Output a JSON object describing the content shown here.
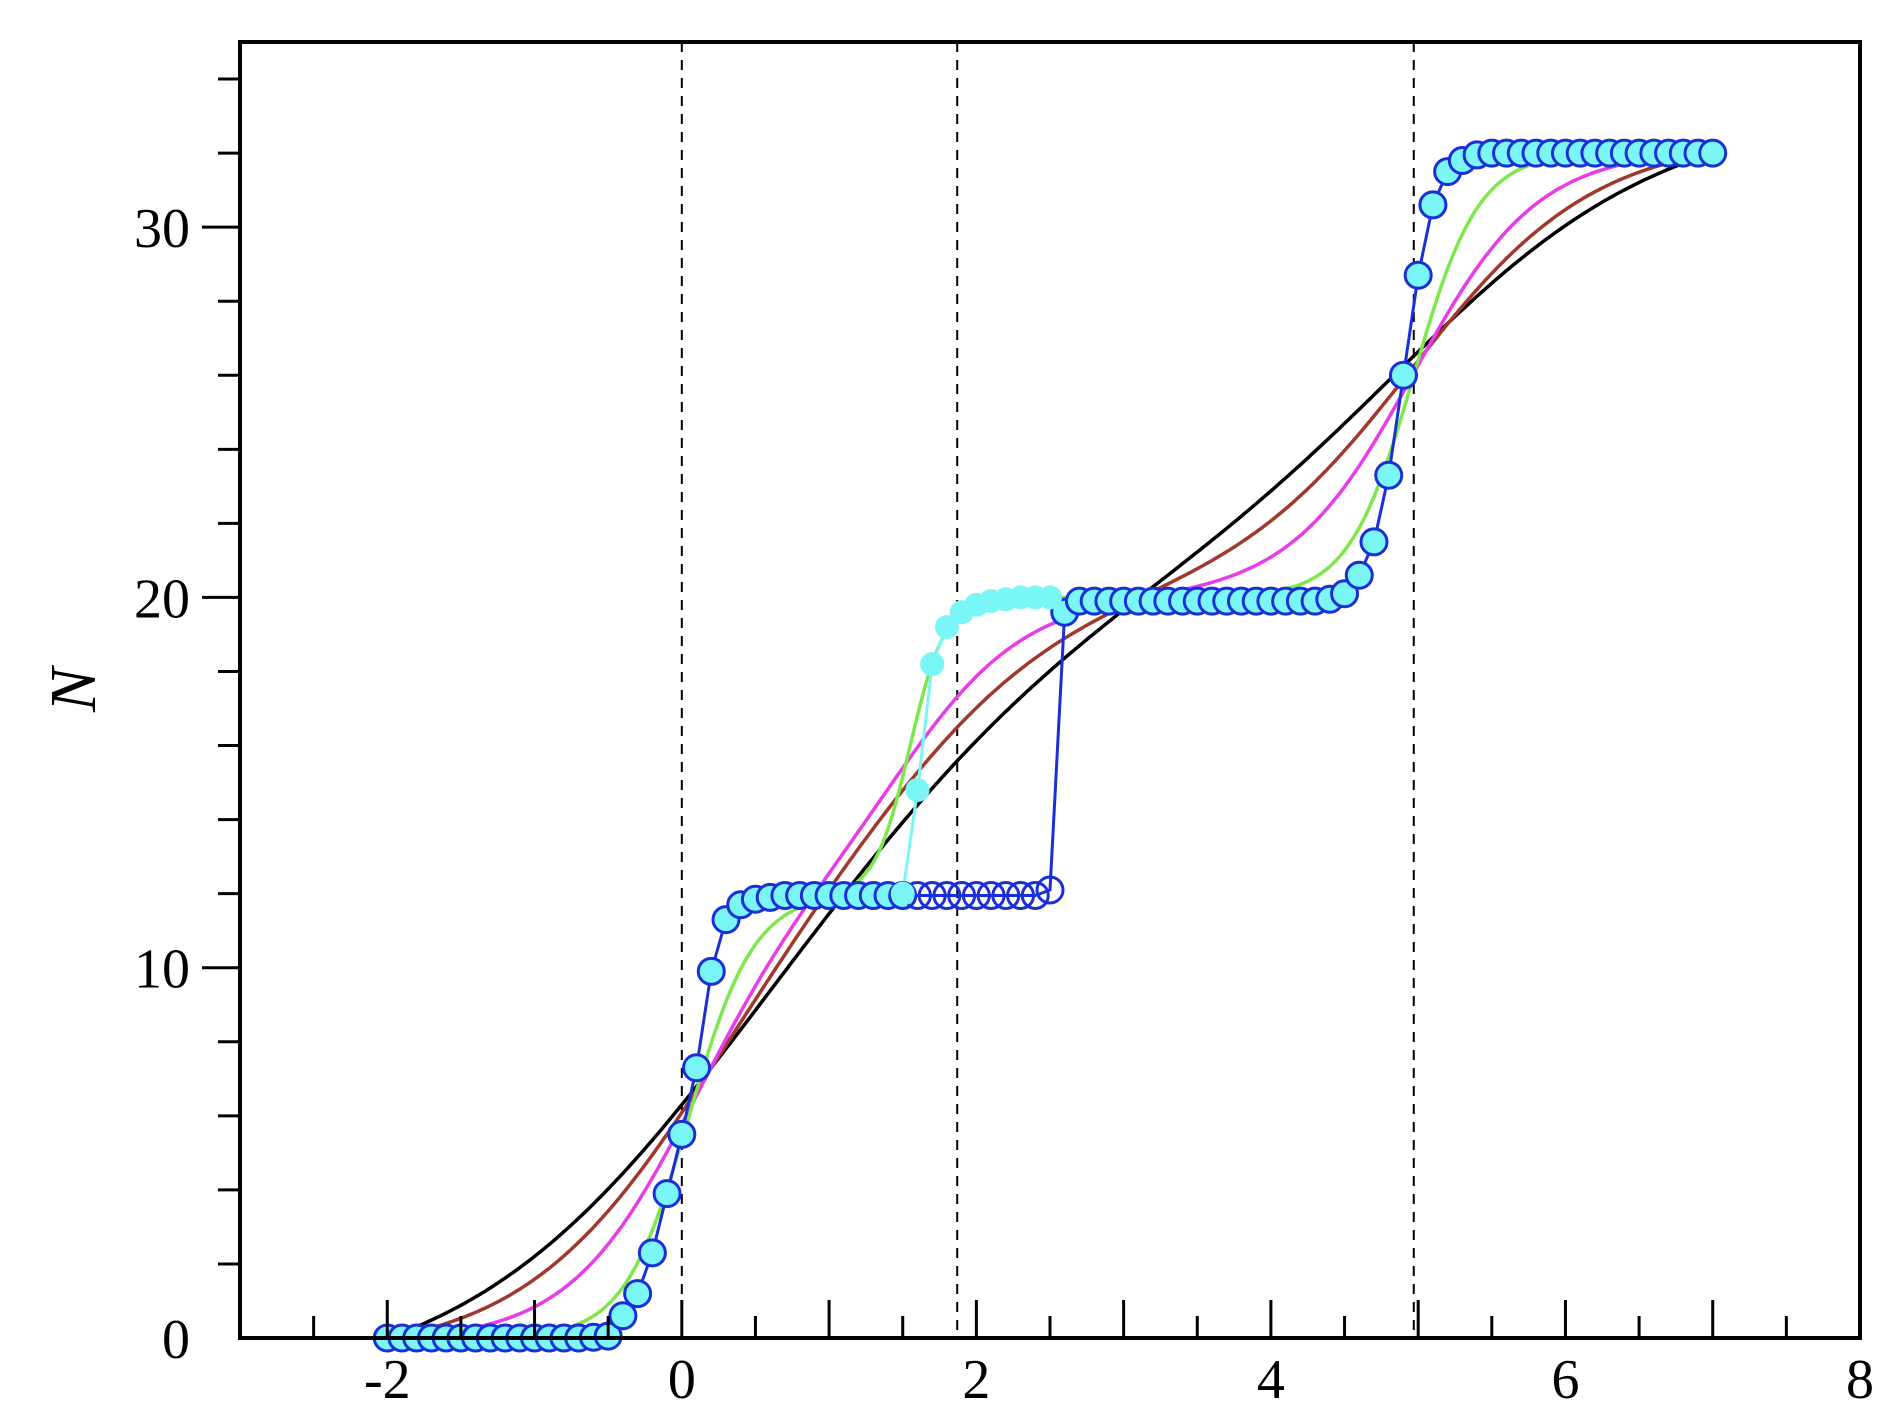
{
  "chart_data": {
    "type": "line",
    "title": "",
    "xlabel": "",
    "ylabel": "N",
    "xlim": [
      -3,
      8
    ],
    "ylim": [
      0,
      35
    ],
    "x_ticks": [
      -2,
      0,
      2,
      4,
      6,
      8
    ],
    "y_ticks": [
      0,
      10,
      20,
      30
    ],
    "x_tick_labels": [
      "-2",
      "0",
      "2",
      "4",
      "6",
      "8"
    ],
    "y_tick_labels": [
      "0",
      "10",
      "20",
      "30"
    ],
    "grid": false,
    "legend": "none",
    "vertical_reference_lines": [
      0,
      1.87,
      4.97
    ],
    "smooth_series": [
      {
        "color": "#000000",
        "step_widths": [
          0.9,
          0.9,
          0.9
        ]
      },
      {
        "color": "#a0382c",
        "step_widths": [
          0.62,
          0.62,
          0.62
        ]
      },
      {
        "color": "#e83ce8",
        "step_widths": [
          0.42,
          0.42,
          0.42
        ]
      },
      {
        "color": "#7ce84a",
        "step_widths": [
          0.22,
          0.12,
          0.22
        ]
      }
    ],
    "marker_series": [
      {
        "marker_edge_color": "#1a2fd8",
        "line_color": "#1a2fd8",
        "marker": "circle",
        "note_values": "lower branch stays at N=12 until x=2.5, jumps to 20 at x=2.6",
        "x": [
          -2,
          -1.9,
          -1.8,
          -1.7,
          -1.6,
          -1.5,
          -1.4,
          -1.3,
          -1.2,
          -1.1,
          -1.0,
          -0.9,
          -0.8,
          -0.7,
          -0.6,
          -0.5,
          -0.4,
          -0.3,
          -0.2,
          -0.1,
          0,
          0.1,
          0.2,
          0.3,
          0.4,
          0.5,
          0.6,
          0.7,
          0.8,
          0.9,
          1.0,
          1.1,
          1.2,
          1.3,
          1.4,
          1.5,
          1.6,
          1.7,
          1.8,
          1.9,
          2.0,
          2.1,
          2.2,
          2.3,
          2.4,
          2.5,
          2.6,
          2.7,
          2.8,
          2.9,
          3.0,
          3.1,
          3.2,
          3.3,
          3.4,
          3.5,
          3.6,
          3.7,
          3.8,
          3.9,
          4.0,
          4.1,
          4.2,
          4.3,
          4.4,
          4.5,
          4.6,
          4.7,
          4.8,
          4.9,
          5.0,
          5.1,
          5.2,
          5.3,
          5.4,
          5.5,
          5.6,
          5.7,
          5.8,
          5.9,
          6.0,
          6.1,
          6.2,
          6.3,
          6.4,
          6.5,
          6.6,
          6.7,
          6.8,
          6.9,
          7.0
        ],
        "y": [
          0,
          0,
          0,
          0,
          0,
          0,
          0,
          0,
          0,
          0,
          0,
          0,
          0,
          0,
          0.02,
          0.05,
          0.6,
          1.2,
          2.3,
          3.9,
          5.5,
          7.3,
          9.9,
          11.3,
          11.7,
          11.85,
          11.9,
          11.95,
          11.95,
          11.95,
          11.95,
          11.95,
          11.95,
          11.95,
          11.95,
          11.95,
          11.95,
          11.95,
          11.95,
          11.95,
          11.95,
          11.95,
          11.95,
          11.95,
          11.95,
          12.1,
          19.6,
          19.9,
          19.9,
          19.9,
          19.9,
          19.9,
          19.9,
          19.9,
          19.9,
          19.9,
          19.9,
          19.9,
          19.9,
          19.9,
          19.9,
          19.9,
          19.9,
          19.9,
          19.95,
          20.1,
          20.6,
          21.5,
          23.3,
          26.0,
          28.7,
          30.6,
          31.5,
          31.8,
          31.95,
          32.0,
          32.0,
          32.0,
          32.0,
          32.0,
          32.0,
          32.0,
          32.0,
          32.0,
          32.0,
          32.0,
          32.0,
          32.0,
          32.0,
          32.0,
          32.0
        ]
      },
      {
        "marker_face_color": "#7af6f6",
        "line_color": "#7af6f6",
        "marker": "circle",
        "x": [
          1.5,
          1.6,
          1.7,
          1.8,
          1.9,
          2.0,
          2.1,
          2.2,
          2.3,
          2.4,
          2.5
        ],
        "y": [
          12.0,
          14.8,
          18.2,
          19.2,
          19.6,
          19.8,
          19.9,
          19.95,
          20.0,
          20.0,
          20.0
        ]
      }
    ]
  }
}
